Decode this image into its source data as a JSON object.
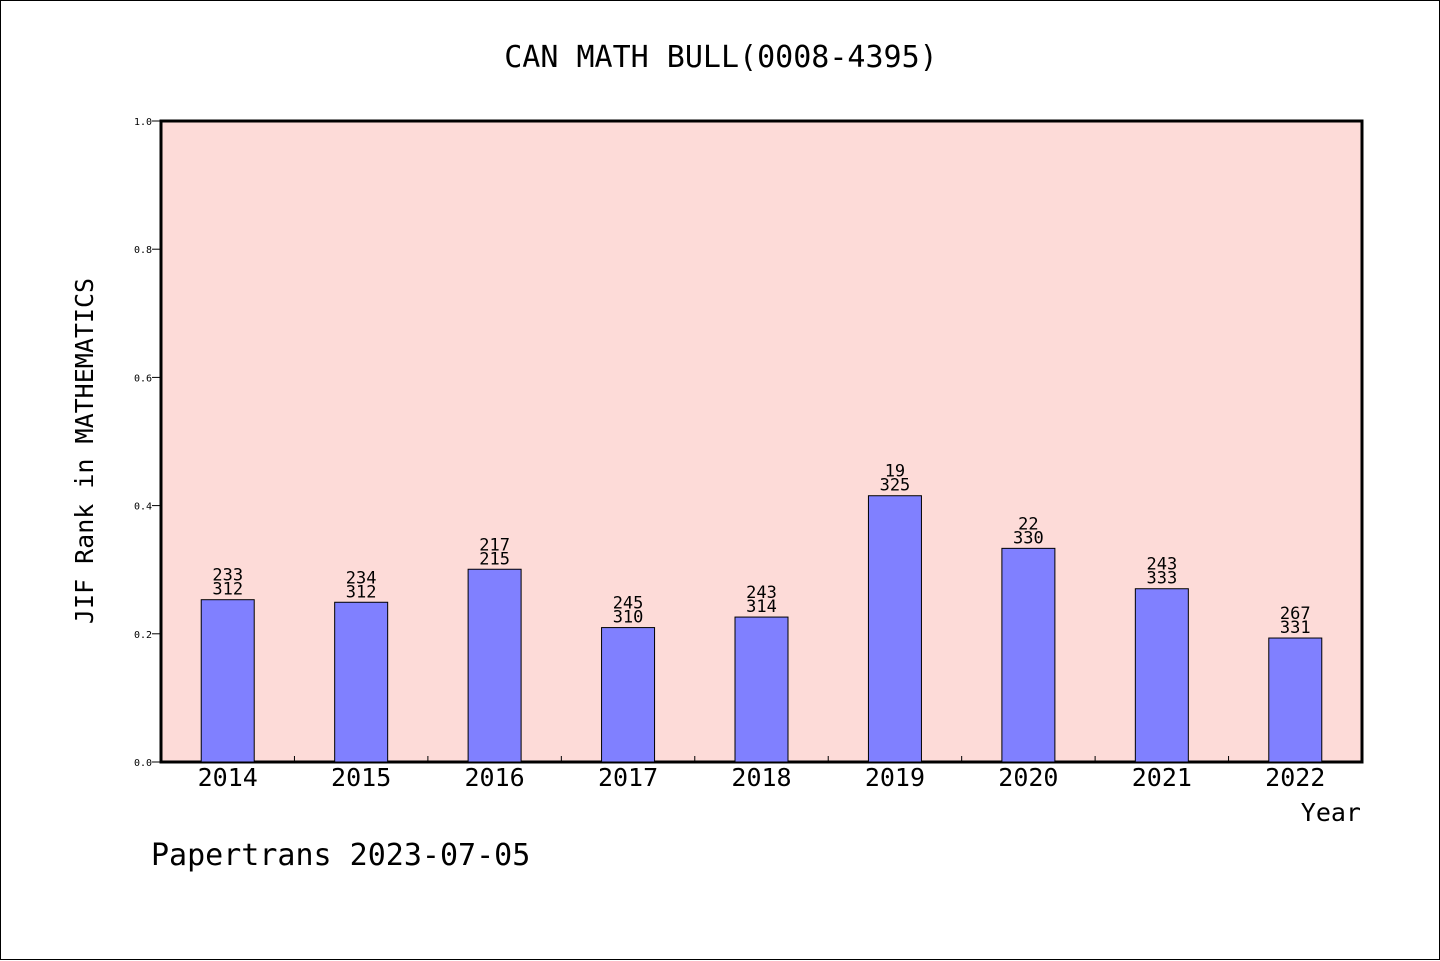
{
  "chart_data": {
    "type": "bar",
    "title": "CAN MATH BULL(0008-4395)",
    "xlabel": "Year",
    "ylabel": "JIF Rank in MATHEMATICS",
    "categories": [
      "2014",
      "2015",
      "2016",
      "2017",
      "2018",
      "2019",
      "2020",
      "2021",
      "2022"
    ],
    "values": [
      0.2532,
      0.2492,
      0.3007,
      0.2097,
      0.2261,
      0.4154,
      0.3333,
      0.2703,
      0.1934
    ],
    "labels_top": [
      "233",
      "234",
      "217",
      "245",
      "243",
      "19",
      "22",
      "243",
      "267"
    ],
    "labels_bottom": [
      "312",
      "312",
      "215",
      "310",
      "314",
      "325",
      "330",
      "333",
      "331"
    ],
    "ylim": [
      0,
      1.0
    ],
    "yticks": [
      "0.0",
      "0.2",
      "0.4",
      "0.6",
      "0.8",
      "1.0"
    ],
    "grid": false,
    "colors": {
      "plot_background": "#fddbd8",
      "bar_fill": "#8080ff",
      "bar_stroke": "#000000"
    }
  },
  "footer": {
    "credit": "Papertrans 2023-07-05"
  }
}
